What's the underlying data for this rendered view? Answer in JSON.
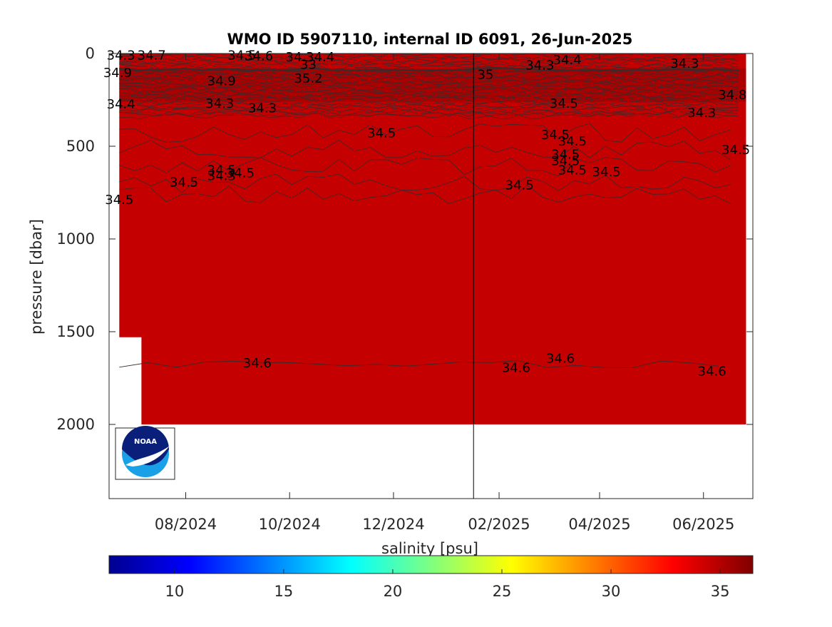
{
  "chart_data": {
    "type": "heatmap",
    "title": "WMO ID 5907110, internal ID 6091, 26-Jun-2025",
    "ylabel": "pressure [dbar]",
    "y_axis_reversed": true,
    "ylim": [
      0,
      2400
    ],
    "y_ticks": [
      0,
      500,
      1000,
      1500,
      2000
    ],
    "y_tick_labels": [
      "0",
      "500",
      "1000",
      "1500",
      "2000"
    ],
    "x_axis_type": "date",
    "xlim": [
      "2024-06-17",
      "2025-06-30"
    ],
    "x_ticks": [
      "2024-08-01",
      "2024-10-01",
      "2024-12-01",
      "2025-02-01",
      "2025-04-01",
      "2025-06-01"
    ],
    "x_tick_labels": [
      "08/2024",
      "10/2024",
      "12/2024",
      "02/2025",
      "04/2025",
      "06/2025"
    ],
    "data_extent": {
      "x_start": "2024-06-23",
      "x_end": "2025-06-26",
      "max_pressure": 2000,
      "early_profile_max_pressure": 1530,
      "early_profile_end": "2024-07-06"
    },
    "vertical_line_date": "2025-01-17",
    "dominant_salinity": 34.5,
    "grid": false,
    "colorbar": {
      "label": "salinity [psu]",
      "location": "bottom",
      "range": [
        7,
        36.5
      ],
      "ticks": [
        10,
        15,
        20,
        25,
        30,
        35
      ],
      "tick_labels": [
        "10",
        "15",
        "20",
        "25",
        "30",
        "35"
      ],
      "colormap": "jet"
    },
    "contour_labels": [
      {
        "text": "34.3",
        "date": "2024-06-24",
        "pressure": 5
      },
      {
        "text": "34.7",
        "date": "2024-07-12",
        "pressure": 5
      },
      {
        "text": "34.9",
        "date": "2024-06-22",
        "pressure": 100
      },
      {
        "text": "34.5",
        "date": "2024-09-03",
        "pressure": 5
      },
      {
        "text": "34.6",
        "date": "2024-09-13",
        "pressure": 10
      },
      {
        "text": "34.3",
        "date": "2024-10-07",
        "pressure": 15
      },
      {
        "text": "34.4",
        "date": "2024-10-19",
        "pressure": 15
      },
      {
        "text": "33",
        "date": "2024-10-12",
        "pressure": 55
      },
      {
        "text": "34.9",
        "date": "2024-08-22",
        "pressure": 145
      },
      {
        "text": "35.2",
        "date": "2024-10-12",
        "pressure": 130
      },
      {
        "text": "35",
        "date": "2025-01-24",
        "pressure": 110
      },
      {
        "text": "34.3",
        "date": "2025-02-25",
        "pressure": 60
      },
      {
        "text": "34.4",
        "date": "2025-03-13",
        "pressure": 30
      },
      {
        "text": "34.3",
        "date": "2025-05-21",
        "pressure": 50
      },
      {
        "text": "34.4",
        "date": "2024-06-24",
        "pressure": 270
      },
      {
        "text": "34.3",
        "date": "2024-08-21",
        "pressure": 265
      },
      {
        "text": "34.3",
        "date": "2024-09-15",
        "pressure": 290
      },
      {
        "text": "34.5",
        "date": "2025-03-11",
        "pressure": 265
      },
      {
        "text": "34.8",
        "date": "2025-06-18",
        "pressure": 220
      },
      {
        "text": "34.3",
        "date": "2025-05-31",
        "pressure": 315
      },
      {
        "text": "34.5",
        "date": "2024-11-24",
        "pressure": 425
      },
      {
        "text": "34.5",
        "date": "2025-03-06",
        "pressure": 435
      },
      {
        "text": "34.5",
        "date": "2025-03-16",
        "pressure": 470
      },
      {
        "text": "34.5",
        "date": "2025-03-12",
        "pressure": 540
      },
      {
        "text": "34.5",
        "date": "2025-03-12",
        "pressure": 575
      },
      {
        "text": "34.5",
        "date": "2025-03-16",
        "pressure": 625
      },
      {
        "text": "34.5",
        "date": "2025-06-20",
        "pressure": 515
      },
      {
        "text": "34.5",
        "date": "2025-04-05",
        "pressure": 635
      },
      {
        "text": "34.5",
        "date": "2025-02-13",
        "pressure": 705
      },
      {
        "text": "34.5",
        "date": "2024-08-22",
        "pressure": 625
      },
      {
        "text": "34.5",
        "date": "2024-09-02",
        "pressure": 640
      },
      {
        "text": "34.3",
        "date": "2024-08-22",
        "pressure": 655
      },
      {
        "text": "34.5",
        "date": "2024-07-31",
        "pressure": 690
      },
      {
        "text": "34.5",
        "date": "2024-06-23",
        "pressure": 785
      },
      {
        "text": "34.6",
        "date": "2024-09-12",
        "pressure": 1665
      },
      {
        "text": "34.6",
        "date": "2025-02-11",
        "pressure": 1690
      },
      {
        "text": "34.6",
        "date": "2025-03-09",
        "pressure": 1640
      },
      {
        "text": "34.6",
        "date": "2025-06-06",
        "pressure": 1710
      }
    ]
  },
  "colors": {
    "fill": "#c40000",
    "fill_dark": "#9a0000",
    "contour": "#3a2a2a",
    "axis": "#262626",
    "background": "#ffffff"
  },
  "logo": {
    "text": "NOAA",
    "icon": "noaa-logo-icon"
  }
}
